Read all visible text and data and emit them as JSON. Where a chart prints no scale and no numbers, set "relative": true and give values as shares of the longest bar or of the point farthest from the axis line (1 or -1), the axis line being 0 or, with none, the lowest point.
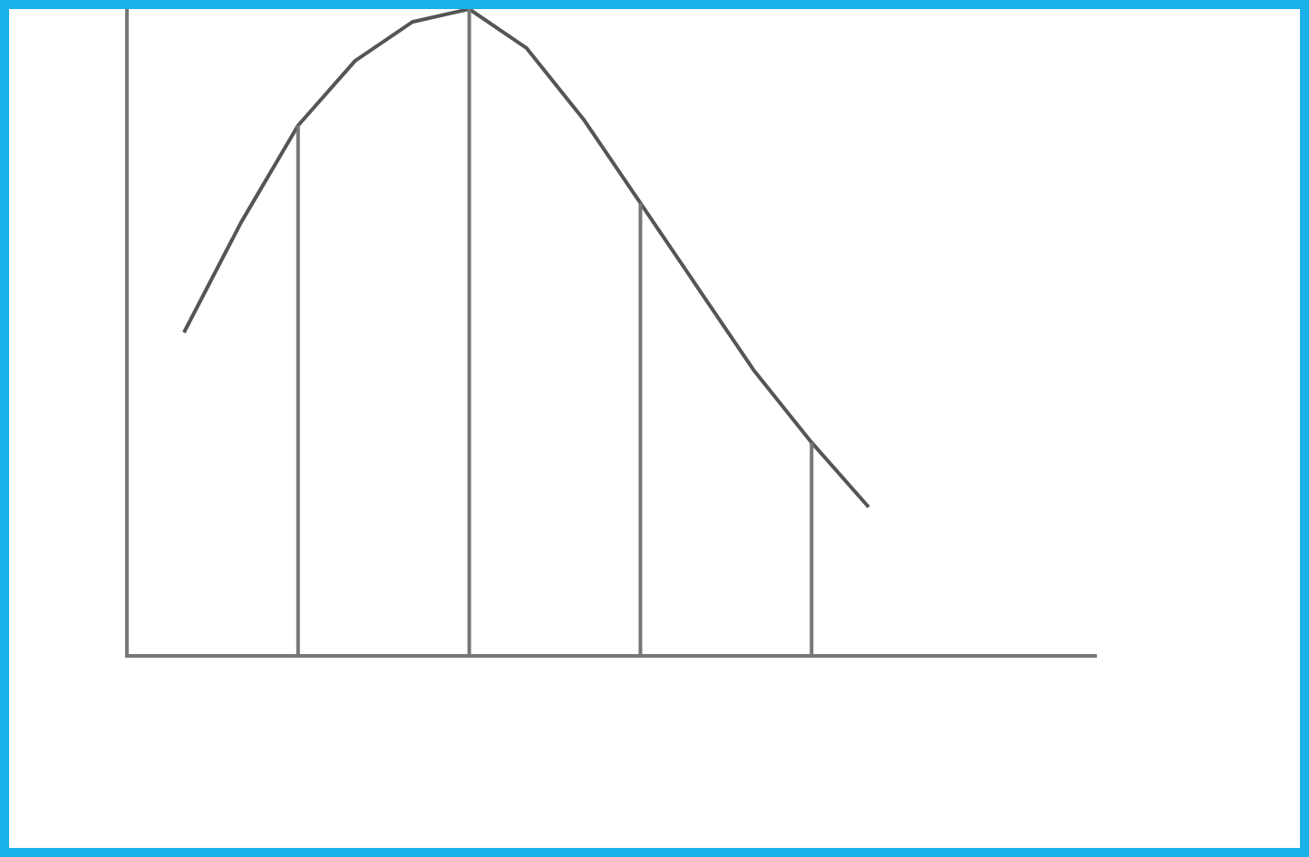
{
  "chart_data": {
    "type": "line",
    "relative": true,
    "categories": [
      null,
      null,
      null,
      null,
      null,
      null,
      null,
      null,
      null,
      null,
      null,
      null,
      null,
      null,
      null,
      null,
      null,
      null
    ],
    "series": [
      {
        "color": "#555555",
        "values": [
          null,
          0.5,
          0.67,
          0.82,
          0.92,
          0.98,
          1,
          0.94,
          0.83,
          0.7,
          0.57,
          0.44,
          0.33,
          0.23,
          null,
          null,
          null,
          null
        ]
      }
    ],
    "legend": false,
    "marker": "none",
    "line_style": "solid"
  }
}
